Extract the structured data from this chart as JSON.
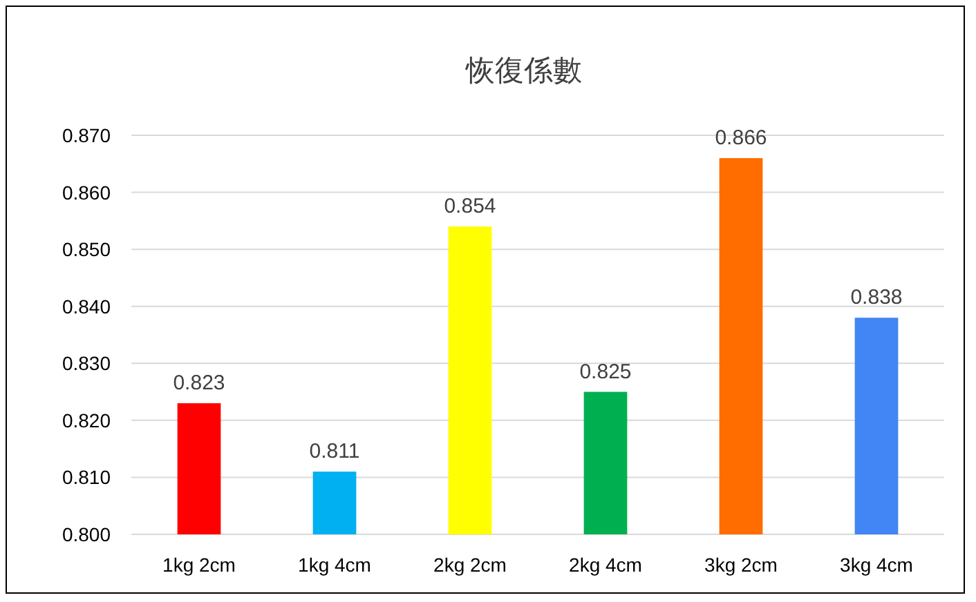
{
  "chart_data": {
    "type": "bar",
    "title": "恢復係數",
    "categories": [
      "1kg 2cm",
      "1kg 4cm",
      "2kg 2cm",
      "2kg 4cm",
      "3kg 2cm",
      "3kg 4cm"
    ],
    "values": [
      0.823,
      0.811,
      0.854,
      0.825,
      0.866,
      0.838
    ],
    "colors": [
      "#ff0000",
      "#00b0f0",
      "#ffff00",
      "#00b050",
      "#ff6d00",
      "#4285f4"
    ],
    "ylim": [
      0.8,
      0.87
    ],
    "yticks": [
      {
        "value": 0.8,
        "label": "0.800"
      },
      {
        "value": 0.81,
        "label": "0.810"
      },
      {
        "value": 0.82,
        "label": "0.820"
      },
      {
        "value": 0.83,
        "label": "0.830"
      },
      {
        "value": 0.84,
        "label": "0.840"
      },
      {
        "value": 0.85,
        "label": "0.850"
      },
      {
        "value": 0.86,
        "label": "0.860"
      },
      {
        "value": 0.87,
        "label": "0.870"
      }
    ],
    "grid": "y",
    "data_labels": true
  }
}
